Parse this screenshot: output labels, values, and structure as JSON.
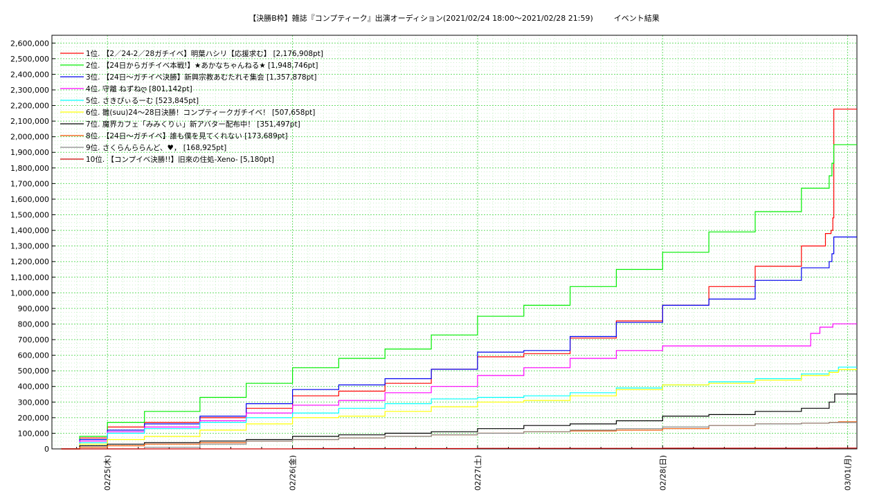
{
  "title": {
    "main": "【決勝B枠】雑誌『コンプティーク』出演オーディション(2021/02/24 18:00〜2021/02/28 21:59)",
    "sub": "イベント結果"
  },
  "chart_data": {
    "type": "line",
    "x_unit": "days since 2021/02/24 00:00",
    "xlim": [
      0.7,
      5.05
    ],
    "ylim": [
      0,
      2650000
    ],
    "y_ticks": [
      0,
      100000,
      200000,
      300000,
      400000,
      500000,
      600000,
      700000,
      800000,
      900000,
      1000000,
      1100000,
      1200000,
      1300000,
      1400000,
      1500000,
      1600000,
      1700000,
      1800000,
      1900000,
      2000000,
      2100000,
      2200000,
      2300000,
      2400000,
      2500000,
      2600000
    ],
    "y_tick_labels": [
      "0",
      "100,000",
      "200,000",
      "300,000",
      "400,000",
      "500,000",
      "600,000",
      "700,000",
      "800,000",
      "900,000",
      "1,000,000",
      "1,100,000",
      "1,200,000",
      "1,300,000",
      "1,400,000",
      "1,500,000",
      "1,600,000",
      "1,700,000",
      "1,800,000",
      "1,900,000",
      "2,000,000",
      "2,100,000",
      "2,200,000",
      "2,300,000",
      "2,400,000",
      "2,500,000",
      "2,600,000"
    ],
    "x_ticks": [
      1,
      2,
      3,
      4,
      5
    ],
    "x_tick_labels": [
      "02/25(木)",
      "02/26(金)",
      "02/27(土)",
      "02/28(日)",
      "03/01(月)"
    ],
    "grid": true,
    "legend_position": "top-left",
    "series": [
      {
        "name": "1位. 【2／24-2／28ガチイベ】明葉ハシリ【応援求む】 [2,176,908pt]",
        "color": "#ff0000",
        "points": [
          [
            0.75,
            0
          ],
          [
            0.85,
            70000
          ],
          [
            1.0,
            140000
          ],
          [
            1.2,
            170000
          ],
          [
            1.5,
            200000
          ],
          [
            1.75,
            260000
          ],
          [
            2.0,
            340000
          ],
          [
            2.25,
            370000
          ],
          [
            2.5,
            420000
          ],
          [
            2.75,
            510000
          ],
          [
            3.0,
            590000
          ],
          [
            3.25,
            610000
          ],
          [
            3.5,
            710000
          ],
          [
            3.75,
            820000
          ],
          [
            4.0,
            920000
          ],
          [
            4.25,
            1040000
          ],
          [
            4.5,
            1170000
          ],
          [
            4.75,
            1300000
          ],
          [
            4.88,
            1380000
          ],
          [
            4.91,
            1400000
          ],
          [
            4.92,
            1480000
          ],
          [
            4.925,
            2176908
          ],
          [
            5.05,
            2176908
          ]
        ]
      },
      {
        "name": "2位. 【24日からガチイベ本戦!】★あかなちゃんねる★ [1,948,746pt]",
        "color": "#00ee00",
        "points": [
          [
            0.75,
            0
          ],
          [
            0.85,
            80000
          ],
          [
            1.0,
            170000
          ],
          [
            1.2,
            240000
          ],
          [
            1.5,
            330000
          ],
          [
            1.75,
            420000
          ],
          [
            2.0,
            520000
          ],
          [
            2.25,
            580000
          ],
          [
            2.5,
            640000
          ],
          [
            2.75,
            730000
          ],
          [
            3.0,
            850000
          ],
          [
            3.25,
            920000
          ],
          [
            3.5,
            1040000
          ],
          [
            3.75,
            1150000
          ],
          [
            4.0,
            1260000
          ],
          [
            4.25,
            1390000
          ],
          [
            4.5,
            1520000
          ],
          [
            4.75,
            1670000
          ],
          [
            4.9,
            1750000
          ],
          [
            4.915,
            1830000
          ],
          [
            4.925,
            1948746
          ],
          [
            5.05,
            1948746
          ]
        ]
      },
      {
        "name": "3位. 【24日〜ガチイベ決勝】新興宗教あむたれそ集会 [1,357,878pt]",
        "color": "#0000ee",
        "points": [
          [
            0.75,
            0
          ],
          [
            0.85,
            60000
          ],
          [
            1.0,
            120000
          ],
          [
            1.2,
            160000
          ],
          [
            1.5,
            210000
          ],
          [
            1.75,
            290000
          ],
          [
            2.0,
            380000
          ],
          [
            2.25,
            410000
          ],
          [
            2.5,
            450000
          ],
          [
            2.75,
            510000
          ],
          [
            3.0,
            620000
          ],
          [
            3.25,
            630000
          ],
          [
            3.5,
            720000
          ],
          [
            3.75,
            810000
          ],
          [
            4.0,
            920000
          ],
          [
            4.25,
            960000
          ],
          [
            4.5,
            1080000
          ],
          [
            4.75,
            1160000
          ],
          [
            4.9,
            1200000
          ],
          [
            4.915,
            1250000
          ],
          [
            4.925,
            1357878
          ],
          [
            5.05,
            1357878
          ]
        ]
      },
      {
        "name": "4位. 守離 ねずねღ [801,142pt]",
        "color": "#ff00ff",
        "points": [
          [
            0.75,
            0
          ],
          [
            0.85,
            50000
          ],
          [
            1.0,
            110000
          ],
          [
            1.2,
            140000
          ],
          [
            1.5,
            180000
          ],
          [
            1.75,
            230000
          ],
          [
            2.0,
            280000
          ],
          [
            2.25,
            310000
          ],
          [
            2.5,
            360000
          ],
          [
            2.75,
            400000
          ],
          [
            3.0,
            470000
          ],
          [
            3.25,
            520000
          ],
          [
            3.5,
            580000
          ],
          [
            3.75,
            630000
          ],
          [
            4.0,
            660000
          ],
          [
            4.25,
            660000
          ],
          [
            4.5,
            660000
          ],
          [
            4.75,
            660000
          ],
          [
            4.78,
            660000
          ],
          [
            4.8,
            740000
          ],
          [
            4.85,
            780000
          ],
          [
            4.92,
            801142
          ],
          [
            5.05,
            801142
          ]
        ]
      },
      {
        "name": "5位. さきぴぃるーむ [523,845pt]",
        "color": "#00ffff",
        "points": [
          [
            0.75,
            0
          ],
          [
            0.85,
            40000
          ],
          [
            1.0,
            100000
          ],
          [
            1.2,
            130000
          ],
          [
            1.5,
            170000
          ],
          [
            1.75,
            200000
          ],
          [
            2.0,
            230000
          ],
          [
            2.25,
            260000
          ],
          [
            2.5,
            290000
          ],
          [
            2.75,
            320000
          ],
          [
            3.0,
            330000
          ],
          [
            3.25,
            340000
          ],
          [
            3.5,
            360000
          ],
          [
            3.75,
            390000
          ],
          [
            4.0,
            410000
          ],
          [
            4.25,
            430000
          ],
          [
            4.5,
            450000
          ],
          [
            4.75,
            480000
          ],
          [
            4.9,
            500000
          ],
          [
            4.95,
            523845
          ],
          [
            5.05,
            523845
          ]
        ]
      },
      {
        "name": "6位. 雛(suu)24〜28日決勝！コンプティークガチイベ！ [507,658pt]",
        "color": "#ffff00",
        "points": [
          [
            0.75,
            0
          ],
          [
            0.85,
            30000
          ],
          [
            1.0,
            60000
          ],
          [
            1.2,
            80000
          ],
          [
            1.5,
            120000
          ],
          [
            1.75,
            160000
          ],
          [
            2.0,
            200000
          ],
          [
            2.25,
            210000
          ],
          [
            2.5,
            240000
          ],
          [
            2.75,
            270000
          ],
          [
            3.0,
            300000
          ],
          [
            3.25,
            310000
          ],
          [
            3.5,
            340000
          ],
          [
            3.75,
            380000
          ],
          [
            4.0,
            410000
          ],
          [
            4.25,
            420000
          ],
          [
            4.5,
            440000
          ],
          [
            4.75,
            470000
          ],
          [
            4.9,
            490000
          ],
          [
            4.95,
            507658
          ],
          [
            5.05,
            507658
          ]
        ]
      },
      {
        "name": "7位. 魔界カフェ「みみくりぃ」新アバター配布中！ [351,497pt]",
        "color": "#000000",
        "points": [
          [
            0.75,
            0
          ],
          [
            0.85,
            20000
          ],
          [
            1.0,
            30000
          ],
          [
            1.2,
            40000
          ],
          [
            1.5,
            50000
          ],
          [
            1.75,
            60000
          ],
          [
            2.0,
            80000
          ],
          [
            2.25,
            90000
          ],
          [
            2.5,
            100000
          ],
          [
            2.75,
            110000
          ],
          [
            3.0,
            130000
          ],
          [
            3.25,
            150000
          ],
          [
            3.5,
            160000
          ],
          [
            3.75,
            180000
          ],
          [
            4.0,
            210000
          ],
          [
            4.25,
            220000
          ],
          [
            4.5,
            240000
          ],
          [
            4.75,
            260000
          ],
          [
            4.9,
            300000
          ],
          [
            4.93,
            351497
          ],
          [
            5.05,
            351497
          ]
        ]
      },
      {
        "name": "8位. 【24日〜ガチイベ】誰も僕を見てくれない [173,689pt]",
        "color": "#ee5500",
        "points": [
          [
            0.75,
            0
          ],
          [
            0.85,
            10000
          ],
          [
            1.0,
            20000
          ],
          [
            1.2,
            30000
          ],
          [
            1.5,
            40000
          ],
          [
            1.75,
            50000
          ],
          [
            2.0,
            60000
          ],
          [
            2.25,
            70000
          ],
          [
            2.5,
            80000
          ],
          [
            2.75,
            90000
          ],
          [
            3.0,
            100000
          ],
          [
            3.25,
            110000
          ],
          [
            3.5,
            115000
          ],
          [
            3.75,
            120000
          ],
          [
            4.0,
            130000
          ],
          [
            4.25,
            150000
          ],
          [
            4.5,
            160000
          ],
          [
            4.75,
            165000
          ],
          [
            4.9,
            170000
          ],
          [
            4.95,
            173689
          ],
          [
            5.05,
            173689
          ]
        ]
      },
      {
        "name": "9位. さくらんららんど、♥， [168,925pt]",
        "color": "#888888",
        "points": [
          [
            0.75,
            0
          ],
          [
            1.1,
            0
          ],
          [
            1.2,
            10000
          ],
          [
            1.5,
            30000
          ],
          [
            1.75,
            50000
          ],
          [
            2.0,
            60000
          ],
          [
            2.25,
            70000
          ],
          [
            2.5,
            80000
          ],
          [
            2.75,
            90000
          ],
          [
            3.0,
            100000
          ],
          [
            3.25,
            110000
          ],
          [
            3.5,
            120000
          ],
          [
            3.75,
            130000
          ],
          [
            4.0,
            140000
          ],
          [
            4.25,
            150000
          ],
          [
            4.5,
            160000
          ],
          [
            4.75,
            165000
          ],
          [
            4.9,
            168925
          ],
          [
            5.05,
            168925
          ]
        ]
      },
      {
        "name": "10位. 【コンプイベ決勝!!】旧來の住処-Xeno- [5,180pt]",
        "color": "#cc0000",
        "points": [
          [
            0.75,
            0
          ],
          [
            2.0,
            2000
          ],
          [
            3.0,
            3500
          ],
          [
            4.0,
            4500
          ],
          [
            4.9,
            5180
          ],
          [
            5.05,
            5180
          ]
        ]
      }
    ]
  }
}
